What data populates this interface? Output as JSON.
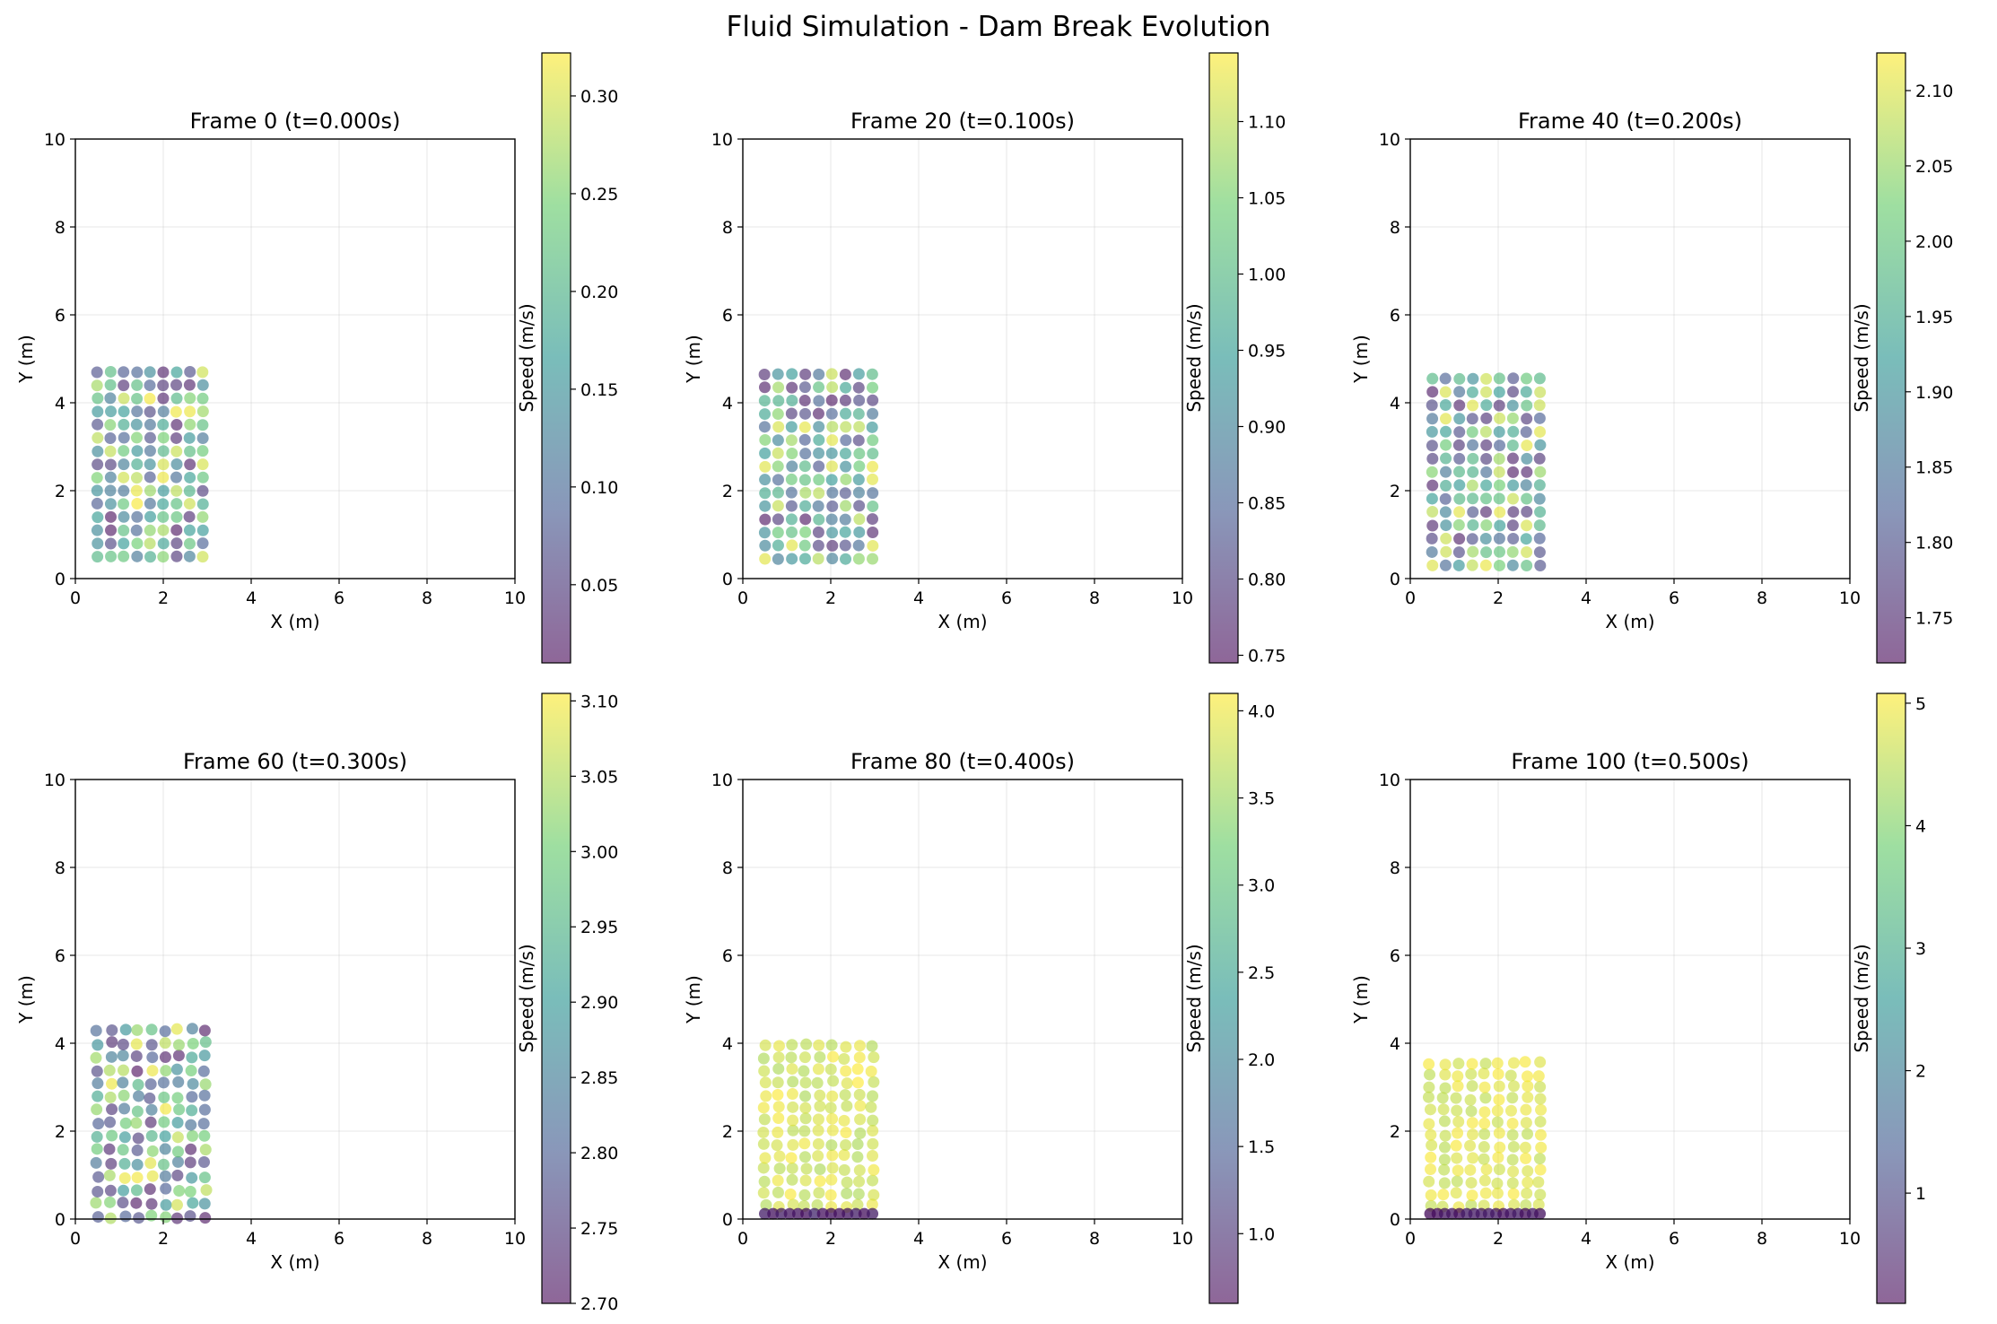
{
  "figure": {
    "title": "Fluid Simulation - Dam Break Evolution",
    "colormap": [
      "#440154",
      "#3b528b",
      "#21918c",
      "#5ec962",
      "#fde725"
    ],
    "point_alpha": 0.6
  },
  "chart_data": [
    {
      "type": "scatter",
      "title": "Frame 0 (t=0.000s)",
      "xlabel": "X (m)",
      "ylabel": "Y (m)",
      "xlim": [
        0,
        10
      ],
      "ylim": [
        0,
        10
      ],
      "xticks": [
        0,
        2,
        4,
        6,
        8,
        10
      ],
      "yticks": [
        0,
        2,
        4,
        6,
        8,
        10
      ],
      "grid": true,
      "colorbar": {
        "label": "Speed (m/s)",
        "range": [
          0.01,
          0.322
        ],
        "ticks": [
          0.05,
          0.1,
          0.15,
          0.2,
          0.25,
          0.3
        ]
      },
      "particles": {
        "columns": 9,
        "rows": 15,
        "x_range": [
          0.5,
          2.9
        ],
        "y_range": [
          0.5,
          4.7
        ],
        "speed_range": [
          0.01,
          0.32
        ],
        "settled_speed": null,
        "settled_count": 0
      }
    },
    {
      "type": "scatter",
      "title": "Frame 20 (t=0.100s)",
      "xlabel": "X (m)",
      "ylabel": "Y (m)",
      "xlim": [
        0,
        10
      ],
      "ylim": [
        0,
        10
      ],
      "xticks": [
        0,
        2,
        4,
        6,
        8,
        10
      ],
      "yticks": [
        0,
        2,
        4,
        6,
        8,
        10
      ],
      "grid": true,
      "colorbar": {
        "label": "Speed (m/s)",
        "range": [
          0.745,
          1.145
        ],
        "ticks": [
          0.75,
          0.8,
          0.85,
          0.9,
          0.95,
          1.0,
          1.05,
          1.1
        ]
      },
      "particles": {
        "columns": 9,
        "rows": 15,
        "x_range": [
          0.5,
          2.95
        ],
        "y_range": [
          0.45,
          4.65
        ],
        "speed_range": [
          0.75,
          1.14
        ],
        "settled_speed": null,
        "settled_count": 0
      }
    },
    {
      "type": "scatter",
      "title": "Frame 40 (t=0.200s)",
      "xlabel": "X (m)",
      "ylabel": "Y (m)",
      "xlim": [
        0,
        10
      ],
      "ylim": [
        0,
        10
      ],
      "xticks": [
        0,
        2,
        4,
        6,
        8,
        10
      ],
      "yticks": [
        0,
        2,
        4,
        6,
        8,
        10
      ],
      "grid": true,
      "colorbar": {
        "label": "Speed (m/s)",
        "range": [
          1.72,
          2.125
        ],
        "ticks": [
          1.75,
          1.8,
          1.85,
          1.9,
          1.95,
          2.0,
          2.05,
          2.1
        ]
      },
      "particles": {
        "columns": 9,
        "rows": 15,
        "x_range": [
          0.5,
          2.95
        ],
        "y_range": [
          0.3,
          4.55
        ],
        "speed_range": [
          1.73,
          2.12
        ],
        "settled_speed": null,
        "settled_count": 0
      }
    },
    {
      "type": "scatter",
      "title": "Frame 60 (t=0.300s)",
      "xlabel": "X (m)",
      "ylabel": "Y (m)",
      "xlim": [
        0,
        10
      ],
      "ylim": [
        0,
        10
      ],
      "xticks": [
        0,
        2,
        4,
        6,
        8,
        10
      ],
      "yticks": [
        0,
        2,
        4,
        6,
        8,
        10
      ],
      "grid": true,
      "colorbar": {
        "label": "Speed (m/s)",
        "range": [
          2.7,
          3.105
        ],
        "ticks": [
          2.7,
          2.75,
          2.8,
          2.85,
          2.9,
          2.95,
          3.0,
          3.05,
          3.1
        ]
      },
      "particles": {
        "columns": 9,
        "rows": 15,
        "x_range": [
          0.5,
          2.95
        ],
        "y_range": [
          0.05,
          4.3
        ],
        "speed_range": [
          2.7,
          3.1
        ],
        "settled_speed": null,
        "settled_count": 0
      }
    },
    {
      "type": "scatter",
      "title": "Frame 80 (t=0.400s)",
      "xlabel": "X (m)",
      "ylabel": "Y (m)",
      "xlim": [
        0,
        10
      ],
      "ylim": [
        0,
        10
      ],
      "xticks": [
        0,
        2,
        4,
        6,
        8,
        10
      ],
      "yticks": [
        0,
        2,
        4,
        6,
        8,
        10
      ],
      "grid": true,
      "colorbar": {
        "label": "Speed (m/s)",
        "range": [
          0.6,
          4.1
        ],
        "ticks": [
          1.0,
          1.5,
          2.0,
          2.5,
          3.0,
          3.5,
          4.0
        ]
      },
      "particles": {
        "columns": 9,
        "rows": 14,
        "x_range": [
          0.5,
          2.95
        ],
        "y_range": [
          0.3,
          3.95
        ],
        "speed_range": [
          3.6,
          4.1
        ],
        "settled_speed": 0.7,
        "settled_count": 14
      }
    },
    {
      "type": "scatter",
      "title": "Frame 100 (t=0.500s)",
      "xlabel": "X (m)",
      "ylabel": "Y (m)",
      "xlim": [
        0,
        10
      ],
      "ylim": [
        0,
        10
      ],
      "xticks": [
        0,
        2,
        4,
        6,
        8,
        10
      ],
      "yticks": [
        0,
        2,
        4,
        6,
        8,
        10
      ],
      "grid": true,
      "colorbar": {
        "label": "Speed (m/s)",
        "range": [
          0.1,
          5.08
        ],
        "ticks": [
          1,
          2,
          3,
          4,
          5
        ]
      },
      "particles": {
        "columns": 9,
        "rows": 13,
        "x_range": [
          0.45,
          2.95
        ],
        "y_range": [
          0.3,
          3.55
        ],
        "speed_range": [
          4.5,
          5.05
        ],
        "settled_speed": 0.2,
        "settled_count": 16
      }
    }
  ]
}
